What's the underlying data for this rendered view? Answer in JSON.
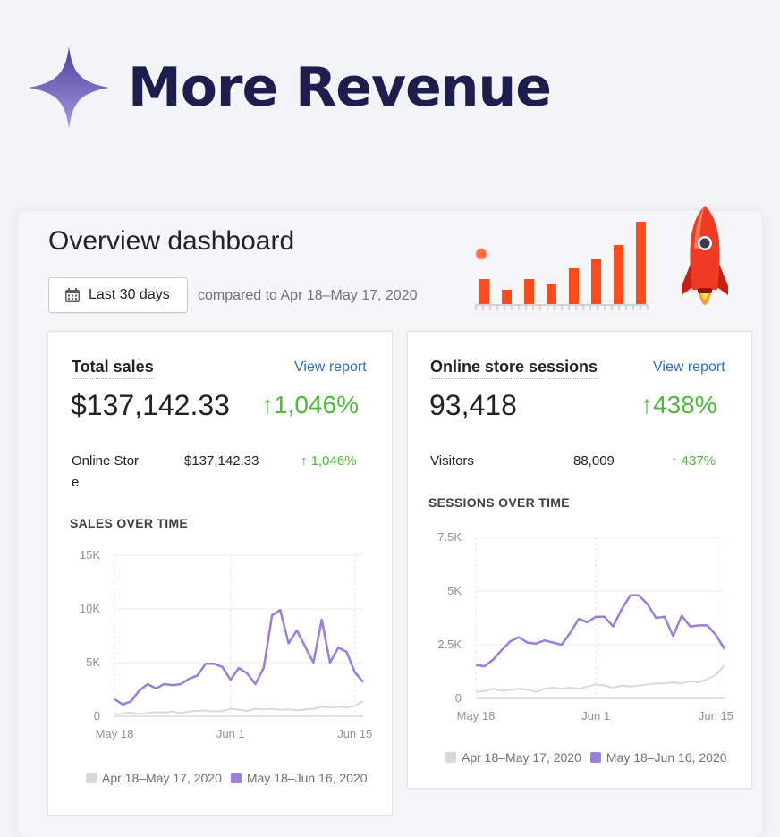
{
  "hero": {
    "title": "More Revenue"
  },
  "dashboard": {
    "title": "Overview dashboard",
    "date_button": "Last 30 days",
    "compared_text": "compared to Apr 18–May 17, 2020"
  },
  "colors": {
    "accent_purple": "#9b7ed9",
    "previous_gray": "#d8d9db",
    "positive_green": "#50b83c",
    "link_blue": "#2c6ecb",
    "bar_orange": "#ff4a1c",
    "title_navy": "#1c1e4d"
  },
  "icons": {
    "sparkle": "sparkle-icon",
    "calendar": "calendar-icon",
    "rocket": "rocket-icon",
    "up_arrow": "arrow-up-icon"
  },
  "decor_bars": {
    "values": [
      28,
      16,
      28,
      22,
      40,
      50,
      66,
      92
    ]
  },
  "total_sales": {
    "title": "Total sales",
    "view_report": "View report",
    "value": "$137,142.33",
    "change": "↑1,046%",
    "breakdown": {
      "label_line1": "Online Stor",
      "label_line2": "e",
      "value": "$137,142.33",
      "change": "↑ 1,046%"
    },
    "section_title": "SALES OVER TIME",
    "legend_previous": "Apr 18–May 17, 2020",
    "legend_current": "May 18–Jun 16, 2020"
  },
  "sessions": {
    "title": "Online store sessions",
    "view_report": "View report",
    "value": "93,418",
    "change": "↑438%",
    "breakdown": {
      "label": "Visitors",
      "value": "88,009",
      "change": "↑ 437%"
    },
    "section_title": "SESSIONS OVER TIME",
    "legend_previous": "Apr 18–May 17, 2020",
    "legend_current": "May 18–Jun 16, 2020"
  },
  "chart_data": [
    {
      "type": "line",
      "title": "SALES OVER TIME",
      "x_ticks": [
        "May 18",
        "Jun 1",
        "Jun 15"
      ],
      "y_ticks": [
        "0",
        "5K",
        "10K",
        "15K"
      ],
      "ylim": [
        0,
        15000
      ],
      "grid": true,
      "legend": "bottom",
      "series": [
        {
          "name": "May 18–Jun 16, 2020",
          "color": "#9b7ed9",
          "values": [
            1600,
            1100,
            1400,
            2400,
            3000,
            2600,
            3000,
            2900,
            3000,
            3500,
            3800,
            4900,
            4900,
            4600,
            3400,
            4500,
            4000,
            3000,
            4500,
            9400,
            9900,
            6800,
            8000,
            6500,
            5000,
            9000,
            5000,
            6400,
            6000,
            4100,
            3200
          ]
        },
        {
          "name": "Apr 18–May 17, 2020",
          "color": "#d8d9db",
          "values": [
            200,
            250,
            350,
            200,
            300,
            400,
            350,
            450,
            300,
            450,
            500,
            550,
            450,
            500,
            700,
            600,
            500,
            700,
            650,
            700,
            600,
            650,
            550,
            650,
            700,
            900,
            800,
            900,
            800,
            1000,
            1400
          ]
        }
      ]
    },
    {
      "type": "line",
      "title": "SESSIONS OVER TIME",
      "x_ticks": [
        "May 18",
        "Jun 1",
        "Jun 15"
      ],
      "y_ticks": [
        "0",
        "2.5K",
        "5K",
        "7.5K"
      ],
      "ylim": [
        0,
        7500
      ],
      "grid": true,
      "legend": "bottom",
      "series": [
        {
          "name": "May 18–Jun 16, 2020",
          "color": "#9b7ed9",
          "values": [
            1550,
            1500,
            1800,
            2250,
            2650,
            2850,
            2600,
            2550,
            2700,
            2600,
            2500,
            3050,
            3700,
            3550,
            3800,
            3800,
            3350,
            4150,
            4800,
            4800,
            4400,
            3750,
            3800,
            2900,
            3850,
            3350,
            3400,
            3400,
            2950,
            2300
          ]
        },
        {
          "name": "Apr 18–May 17, 2020",
          "color": "#d8d9db",
          "values": [
            300,
            350,
            450,
            350,
            400,
            450,
            400,
            300,
            450,
            500,
            450,
            500,
            450,
            550,
            650,
            600,
            500,
            600,
            550,
            600,
            650,
            700,
            700,
            750,
            700,
            800,
            750,
            900,
            1100,
            1550
          ]
        }
      ]
    }
  ]
}
